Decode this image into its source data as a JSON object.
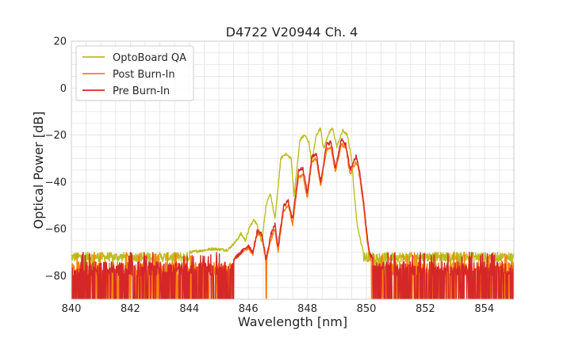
{
  "chart_data": {
    "type": "line",
    "title": "D4722 V20944 Ch. 4",
    "xlabel": "Wavelength [nm]",
    "ylabel": "Optical Power [dB]",
    "xlim": [
      840,
      855
    ],
    "ylim": [
      -90,
      20
    ],
    "xticks": [
      "840",
      "842",
      "844",
      "846",
      "848",
      "850",
      "852",
      "854"
    ],
    "yticks": [
      "20",
      "0",
      "−20",
      "−40",
      "−60",
      "−80"
    ],
    "grid": true,
    "legend_position": "top-left",
    "series": [
      {
        "name": "OptoBoard QA",
        "color": "#bcbd22",
        "noise_floor": -72,
        "points": [
          [
            840,
            -72
          ],
          [
            842,
            -71.5
          ],
          [
            844,
            -70
          ],
          [
            844.8,
            -68.5
          ],
          [
            845.3,
            -69
          ],
          [
            845.6,
            -65
          ],
          [
            845.75,
            -62
          ],
          [
            845.9,
            -65
          ],
          [
            846.05,
            -59
          ],
          [
            846.2,
            -56
          ],
          [
            846.35,
            -60
          ],
          [
            846.45,
            -66
          ],
          [
            846.6,
            -50
          ],
          [
            846.75,
            -45
          ],
          [
            846.9,
            -56
          ],
          [
            847.1,
            -30
          ],
          [
            847.25,
            -28
          ],
          [
            847.45,
            -30
          ],
          [
            847.55,
            -46
          ],
          [
            847.75,
            -22
          ],
          [
            847.9,
            -20
          ],
          [
            848.05,
            -23
          ],
          [
            848.15,
            -32
          ],
          [
            848.3,
            -20
          ],
          [
            848.45,
            -17
          ],
          [
            848.55,
            -26
          ],
          [
            848.7,
            -20
          ],
          [
            848.85,
            -17
          ],
          [
            849.0,
            -25
          ],
          [
            849.2,
            -18
          ],
          [
            849.35,
            -20
          ],
          [
            849.5,
            -30
          ],
          [
            849.6,
            -47
          ],
          [
            849.7,
            -59
          ],
          [
            849.8,
            -65
          ],
          [
            849.9,
            -70
          ],
          [
            850.1,
            -72
          ],
          [
            852,
            -72
          ],
          [
            855,
            -72
          ]
        ]
      },
      {
        "name": "Post Burn-In",
        "color": "#ff7f0e",
        "noise_floor": -75,
        "points": [
          [
            840,
            -75
          ],
          [
            844,
            -74
          ],
          [
            845.5,
            -73
          ],
          [
            846.0,
            -68
          ],
          [
            846.15,
            -71
          ],
          [
            846.3,
            -62
          ],
          [
            846.45,
            -63
          ],
          [
            846.6,
            -74
          ],
          [
            846.75,
            -65
          ],
          [
            846.9,
            -60
          ],
          [
            847.0,
            -70
          ],
          [
            847.2,
            -52
          ],
          [
            847.35,
            -50
          ],
          [
            847.5,
            -58
          ],
          [
            847.7,
            -38
          ],
          [
            847.85,
            -37
          ],
          [
            848.0,
            -47
          ],
          [
            848.15,
            -31
          ],
          [
            848.3,
            -30
          ],
          [
            848.45,
            -42
          ],
          [
            848.65,
            -26
          ],
          [
            848.8,
            -25
          ],
          [
            848.95,
            -36
          ],
          [
            849.15,
            -24
          ],
          [
            849.3,
            -25
          ],
          [
            849.45,
            -37
          ],
          [
            849.65,
            -31
          ],
          [
            849.75,
            -36
          ],
          [
            849.9,
            -50
          ],
          [
            850.0,
            -62
          ],
          [
            850.1,
            -72
          ],
          [
            850.3,
            -75
          ],
          [
            855,
            -75
          ]
        ]
      },
      {
        "name": "Pre Burn-In",
        "color": "#d62728",
        "noise_floor": -75,
        "points": [
          [
            840,
            -75
          ],
          [
            844,
            -74
          ],
          [
            845.5,
            -73
          ],
          [
            846.0,
            -67
          ],
          [
            846.15,
            -70
          ],
          [
            846.3,
            -61
          ],
          [
            846.45,
            -62
          ],
          [
            846.6,
            -73
          ],
          [
            846.75,
            -63
          ],
          [
            846.9,
            -58
          ],
          [
            847.0,
            -68
          ],
          [
            847.2,
            -50
          ],
          [
            847.35,
            -48
          ],
          [
            847.5,
            -56
          ],
          [
            847.7,
            -35
          ],
          [
            847.85,
            -34
          ],
          [
            848.0,
            -45
          ],
          [
            848.15,
            -29
          ],
          [
            848.3,
            -28
          ],
          [
            848.45,
            -40
          ],
          [
            848.65,
            -24
          ],
          [
            848.8,
            -23
          ],
          [
            848.95,
            -34
          ],
          [
            849.15,
            -22
          ],
          [
            849.3,
            -24
          ],
          [
            849.45,
            -35
          ],
          [
            849.65,
            -29
          ],
          [
            849.75,
            -34
          ],
          [
            849.9,
            -48
          ],
          [
            850.0,
            -60
          ],
          [
            850.1,
            -70
          ],
          [
            850.3,
            -75
          ],
          [
            855,
            -75
          ]
        ]
      }
    ]
  }
}
